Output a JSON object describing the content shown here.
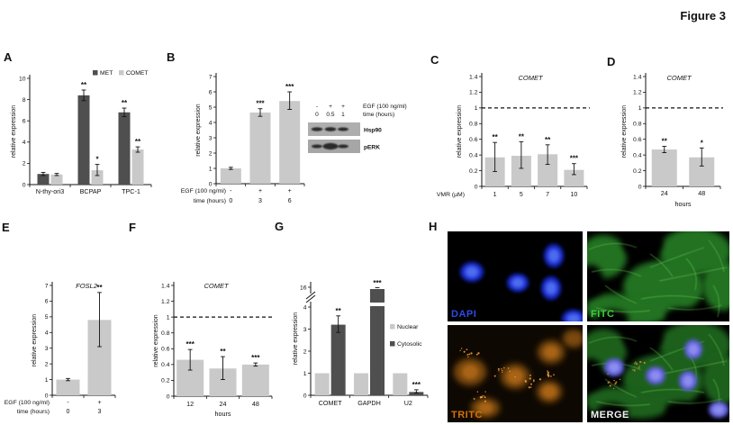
{
  "figure_label": "Figure 3",
  "colors": {
    "bar_dark": "#4f4f4f",
    "bar_light": "#c9c9c9",
    "axis": "#111111"
  },
  "panels": {
    "A": {
      "label": "A",
      "chart_data": {
        "type": "bar",
        "ylabel": "relative expression",
        "yticks": [
          0,
          2,
          4,
          6,
          8,
          10
        ],
        "ylim": [
          0,
          10
        ],
        "categories": [
          "N-thy-ori3",
          "BCPAP",
          "TPC-1"
        ],
        "legend": [
          {
            "label": "MET",
            "swatch": "dark"
          },
          {
            "label": "COMET",
            "swatch": "light"
          }
        ],
        "series": [
          {
            "name": "MET",
            "shade": "dark",
            "values": [
              1.0,
              8.4,
              6.8
            ],
            "err_lo": [
              0.85,
              7.9,
              6.4
            ],
            "err_hi": [
              1.15,
              8.9,
              7.2
            ],
            "sig": [
              "",
              "**",
              "**"
            ]
          },
          {
            "name": "COMET",
            "shade": "light",
            "values": [
              0.95,
              1.35,
              3.3
            ],
            "err_lo": [
              0.85,
              0.85,
              3.05
            ],
            "err_hi": [
              1.05,
              1.9,
              3.55
            ],
            "sig": [
              "",
              "*",
              "**"
            ]
          }
        ]
      }
    },
    "B": {
      "label": "B",
      "chart_data": {
        "type": "bar",
        "ylabel": "relative expression",
        "yticks": [
          0,
          1,
          2,
          3,
          4,
          5,
          6,
          7
        ],
        "ylim": [
          0,
          7
        ],
        "x_rows": [
          {
            "label": "EGF (100 ng/ml)",
            "values": [
              "-",
              "+",
              "+"
            ]
          },
          {
            "label": "time (hours)",
            "values": [
              "0",
              "3",
              "6"
            ]
          }
        ],
        "series": [
          {
            "name": "",
            "shade": "light",
            "values": [
              1.0,
              4.65,
              5.4
            ],
            "err_lo": [
              0.93,
              4.4,
              4.85
            ],
            "err_hi": [
              1.07,
              4.9,
              6.0
            ],
            "sig": [
              "",
              "***",
              "***"
            ]
          }
        ]
      },
      "blot": {
        "header_rows": [
          {
            "values": [
              "-",
              "+",
              "+"
            ],
            "label": "EGF (100 ng/ml)"
          },
          {
            "values": [
              "0",
              "0.5",
              "1"
            ],
            "label": "time (hours)"
          }
        ],
        "bands": [
          {
            "label": "Hsp90"
          },
          {
            "label": "pERK"
          }
        ]
      }
    },
    "C": {
      "label": "C",
      "chart_data": {
        "type": "bar",
        "title": "COMET",
        "ylabel": "relative expression",
        "yticks": [
          0,
          0.2,
          0.4,
          0.6,
          0.8,
          1,
          1.2,
          1.4
        ],
        "ylim": [
          0,
          1.4
        ],
        "dashed_at": 1,
        "x_rows": [
          {
            "label": "VMR (µM)",
            "values": [
              "1",
              "5",
              "7",
              "10"
            ]
          }
        ],
        "series": [
          {
            "name": "",
            "shade": "light",
            "values": [
              0.37,
              0.39,
              0.41,
              0.21
            ],
            "err_lo": [
              0.19,
              0.23,
              0.28,
              0.15
            ],
            "err_hi": [
              0.56,
              0.57,
              0.53,
              0.29
            ],
            "sig": [
              "**",
              "**",
              "**",
              "***"
            ]
          }
        ]
      }
    },
    "D": {
      "label": "D",
      "chart_data": {
        "type": "bar",
        "title": "COMET",
        "ylabel": "relative expression",
        "yticks": [
          0,
          0.2,
          0.4,
          0.6,
          0.8,
          1,
          1.2,
          1.4
        ],
        "ylim": [
          0,
          1.4
        ],
        "dashed_at": 1,
        "categories": [
          "24",
          "48"
        ],
        "xlabel": "hours",
        "series": [
          {
            "name": "",
            "shade": "light",
            "values": [
              0.47,
              0.37
            ],
            "err_lo": [
              0.43,
              0.26
            ],
            "err_hi": [
              0.51,
              0.49
            ],
            "sig": [
              "**",
              "*"
            ]
          }
        ]
      }
    },
    "E": {
      "label": "E",
      "chart_data": {
        "type": "bar",
        "title": "FOSL2",
        "ylabel": "relative expression",
        "yticks": [
          0,
          1,
          2,
          3,
          4,
          5,
          6,
          7
        ],
        "ylim": [
          0,
          7
        ],
        "x_rows": [
          {
            "label": "EGF (100 ng/ml)",
            "values": [
              "-",
              "+"
            ]
          },
          {
            "label": "time (hours)",
            "values": [
              "0",
              "3"
            ]
          }
        ],
        "series": [
          {
            "name": "",
            "shade": "light",
            "values": [
              1.0,
              4.8
            ],
            "err_lo": [
              0.93,
              3.1
            ],
            "err_hi": [
              1.07,
              6.55
            ],
            "sig": [
              "",
              "**"
            ]
          }
        ]
      }
    },
    "F": {
      "label": "F",
      "chart_data": {
        "type": "bar",
        "title": "COMET",
        "ylabel": "relative expression",
        "yticks": [
          0,
          0.2,
          0.4,
          0.6,
          0.8,
          1,
          1.2,
          1.4
        ],
        "ylim": [
          0,
          1.4
        ],
        "dashed_at": 1,
        "categories": [
          "12",
          "24",
          "48"
        ],
        "xlabel": "hours",
        "series": [
          {
            "name": "",
            "shade": "light",
            "values": [
              0.46,
              0.35,
              0.4
            ],
            "err_lo": [
              0.33,
              0.21,
              0.38
            ],
            "err_hi": [
              0.59,
              0.5,
              0.42
            ],
            "sig": [
              "***",
              "**",
              "***"
            ]
          }
        ]
      }
    },
    "G": {
      "label": "G",
      "chart_data": {
        "type": "bar-broken-axis",
        "ylabel": "relative expression",
        "yticks_linear": [
          0,
          1,
          2,
          3,
          4
        ],
        "ytick_top": 16,
        "categories": [
          "COMET",
          "GAPDH",
          "U2"
        ],
        "legend": [
          {
            "label": "Nuclear",
            "swatch": "light"
          },
          {
            "label": "Cytosolic",
            "swatch": "dark"
          }
        ],
        "series": [
          {
            "name": "Nuclear",
            "shade": "light",
            "values": [
              1,
              1,
              1
            ],
            "err_lo": [
              null,
              null,
              null
            ],
            "err_hi": [
              null,
              null,
              null
            ],
            "sig": [
              "",
              "",
              ""
            ]
          },
          {
            "name": "Cytosolic",
            "shade": "dark",
            "values": [
              3.2,
              15.5,
              0.15
            ],
            "err_lo": [
              2.85,
              null,
              0.1
            ],
            "err_hi": [
              3.6,
              null,
              0.25
            ],
            "sig": [
              "**",
              "***",
              "***"
            ]
          }
        ]
      }
    },
    "H": {
      "label": "H",
      "images": [
        {
          "name": "DAPI",
          "label_color": "#2e49e8"
        },
        {
          "name": "FITC",
          "label_color": "#3ecb3e"
        },
        {
          "name": "TRITC",
          "label_color": "#d2720a"
        },
        {
          "name": "MERGE",
          "label_color": "#f2f2f2"
        }
      ]
    }
  }
}
